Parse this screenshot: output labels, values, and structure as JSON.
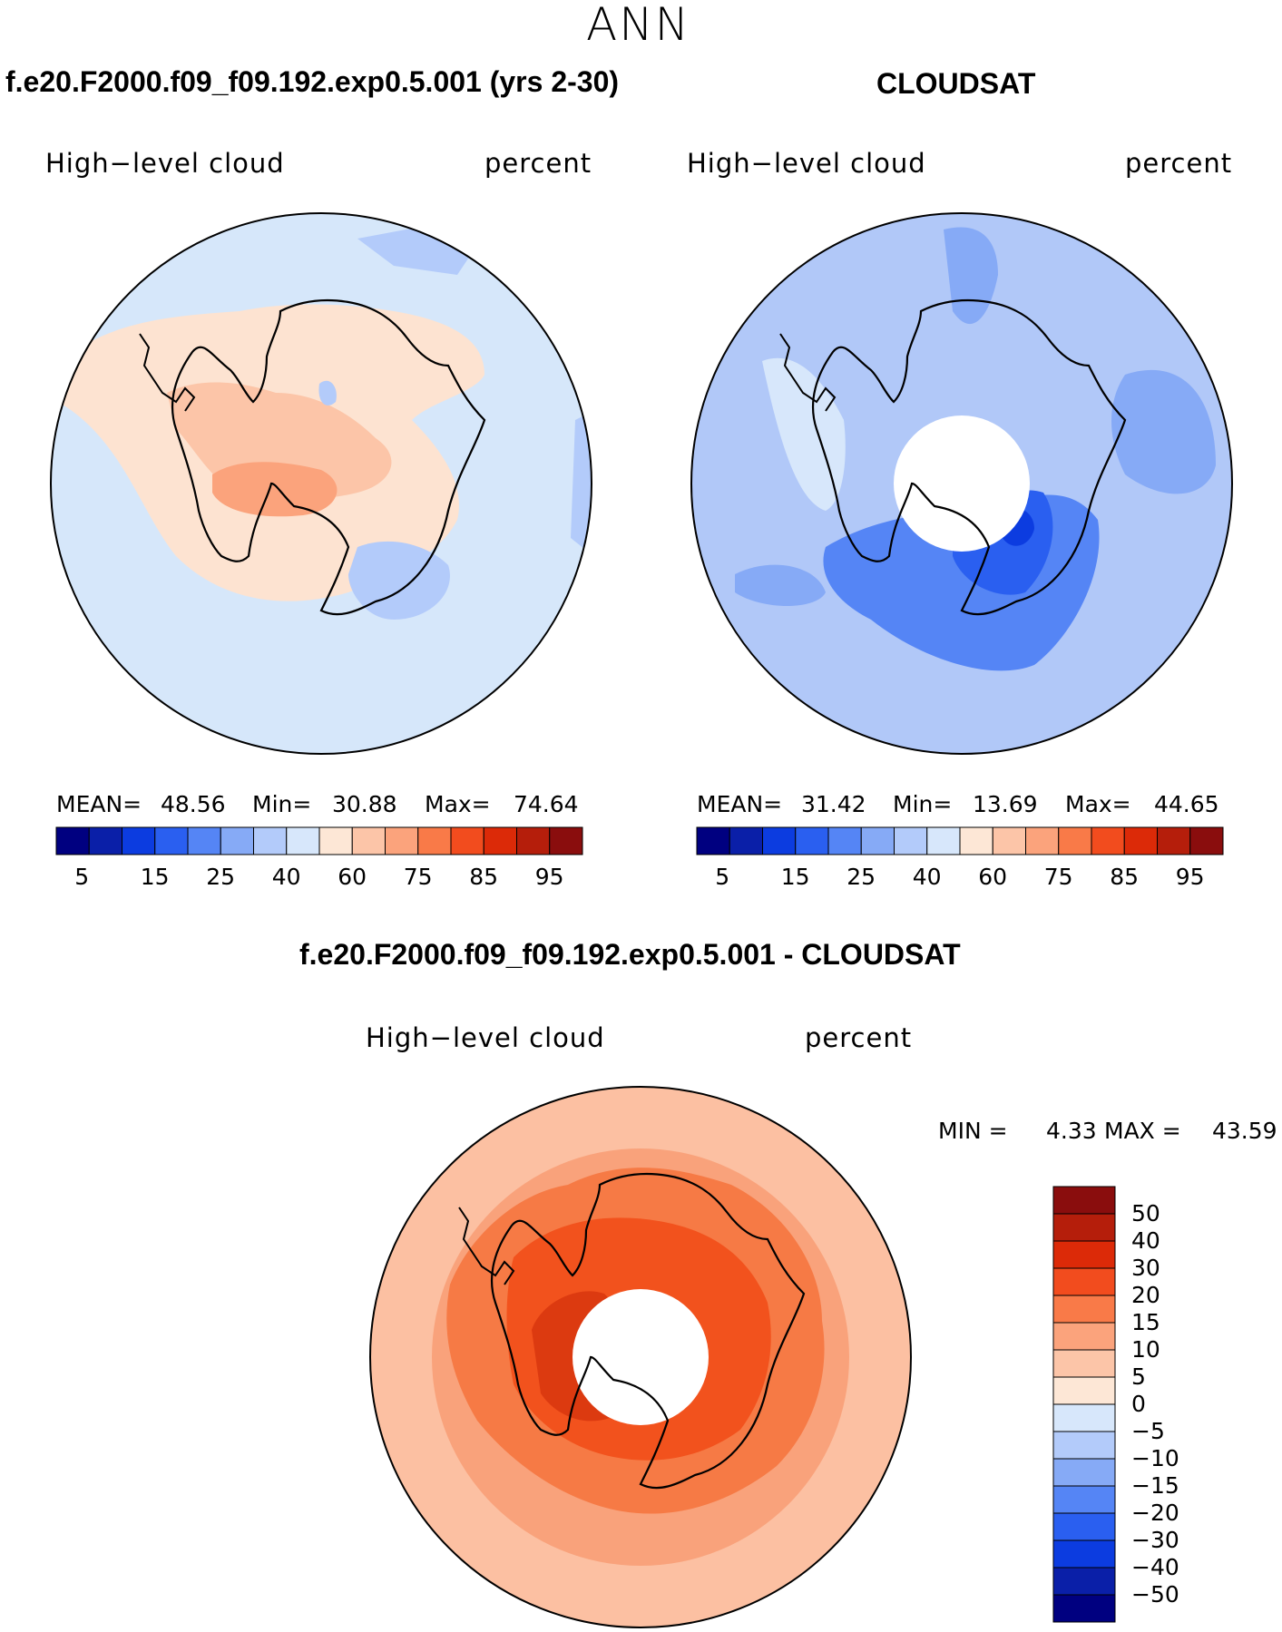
{
  "figure": {
    "season": "ANN",
    "colors": {
      "pos_scale": [
        "#000080",
        "#0a1fa8",
        "#0c3ce0",
        "#2a5ff0",
        "#5585f5",
        "#86aaf6",
        "#b3cbfa",
        "#d7e7fb",
        "#fde7d6",
        "#fcc5a8",
        "#fba37c",
        "#f97a48",
        "#f24c1e",
        "#dc2a08",
        "#b51e0b",
        "#8a0d0d"
      ],
      "ocean_model": "#d6e7fa",
      "land_model": "#fde3d1",
      "ocean_obs": "#b1c8f8",
      "diff_outer": "#fcc0a2",
      "diff_mid": "#f9a27b",
      "diff_inner": "#f67a45",
      "diff_core": "#f2521d",
      "diff_center": "#dc3a10"
    }
  },
  "panels": {
    "model": {
      "title": "f.e20.F2000.f09_f09.192.exp0.5.001 (yrs 2-30)",
      "variable": "High−level cloud",
      "units": "percent",
      "mean_label": "MEAN=",
      "mean": "48.56",
      "min_label": "Min=",
      "min": "30.88",
      "max_label": "Max=",
      "max": "74.64"
    },
    "obs": {
      "title": "CLOUDSAT",
      "variable": "High−level cloud",
      "units": "percent",
      "mean_label": "MEAN=",
      "mean": "31.42",
      "min_label": "Min=",
      "min": "13.69",
      "max_label": "Max=",
      "max": "44.65"
    },
    "diff": {
      "title": "f.e20.F2000.f09_f09.192.exp0.5.001 - CLOUDSAT",
      "variable": "High−level cloud",
      "units": "percent",
      "min_label": "MIN =",
      "min": "4.33",
      "max_label": "MAX =",
      "max": "43.59"
    }
  },
  "colorbars": {
    "horizontal_ticks": [
      "5",
      "15",
      "25",
      "40",
      "60",
      "75",
      "85",
      "95"
    ],
    "vertical_ticks": [
      "50",
      "40",
      "30",
      "20",
      "15",
      "10",
      "5",
      "0",
      "−5",
      "−10",
      "−15",
      "−20",
      "−30",
      "−40",
      "−50"
    ]
  }
}
